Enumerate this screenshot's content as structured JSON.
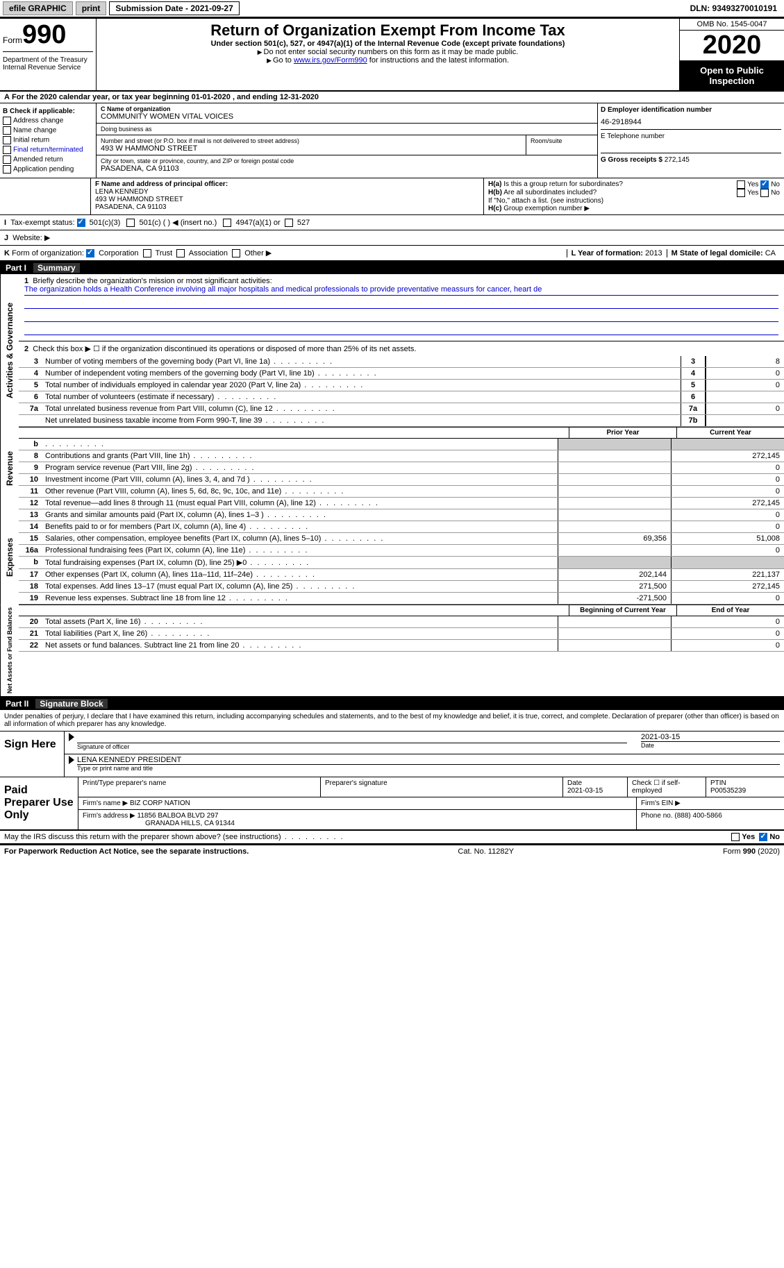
{
  "topbar": {
    "efile": "efile GRAPHIC",
    "print": "print",
    "submission": "Submission Date - 2021-09-27",
    "dln": "DLN: 93493270010191"
  },
  "header": {
    "form_label": "Form",
    "form_num": "990",
    "dept": "Department of the Treasury\nInternal Revenue Service",
    "title": "Return of Organization Exempt From Income Tax",
    "subtitle": "Under section 501(c), 527, or 4947(a)(1) of the Internal Revenue Code (except private foundations)",
    "note1": "Do not enter social security numbers on this form as it may be made public.",
    "note2_pre": "Go to ",
    "note2_link": "www.irs.gov/Form990",
    "note2_post": " for instructions and the latest information.",
    "omb": "OMB No. 1545-0047",
    "year": "2020",
    "open": "Open to Public Inspection"
  },
  "lineA": "For the 2020 calendar year, or tax year beginning 01-01-2020   , and ending 12-31-2020",
  "sectionB": {
    "label": "B Check if applicable:",
    "items": [
      "Address change",
      "Name change",
      "Initial return",
      "Final return/terminated",
      "Amended return",
      "Application pending"
    ]
  },
  "sectionC": {
    "name_label": "C Name of organization",
    "name": "COMMUNITY WOMEN VITAL VOICES",
    "dba_label": "Doing business as",
    "addr_label": "Number and street (or P.O. box if mail is not delivered to street address)",
    "room_label": "Room/suite",
    "addr": "493 W HAMMOND STREET",
    "city_label": "City or town, state or province, country, and ZIP or foreign postal code",
    "city": "PASADENA, CA  91103"
  },
  "sectionD": {
    "label": "D Employer identification number",
    "ein": "46-2918944"
  },
  "sectionE": {
    "label": "E Telephone number",
    "val": ""
  },
  "sectionG": {
    "label": "G Gross receipts $",
    "val": "272,145"
  },
  "sectionF": {
    "label": "F Name and address of principal officer:",
    "name": "LENA KENNEDY",
    "addr": "493 W HAMMOND STREET",
    "city": "PASADENA, CA  91103"
  },
  "sectionH": {
    "a": "Is this a group return for subordinates?",
    "a_yes": "Yes",
    "a_no": "No",
    "b": "Are all subordinates included?",
    "b_yes": "Yes",
    "b_no": "No",
    "note": "If \"No,\" attach a list. (see instructions)",
    "c": "Group exemption number ▶"
  },
  "rowI": {
    "label": "Tax-exempt status:",
    "opts": [
      "501(c)(3)",
      "501(c) (  ) ◀ (insert no.)",
      "4947(a)(1) or",
      "527"
    ]
  },
  "rowJ": {
    "label": "Website: ▶"
  },
  "rowK": {
    "label": "Form of organization:",
    "opts": [
      "Corporation",
      "Trust",
      "Association",
      "Other ▶"
    ]
  },
  "rowL": {
    "label": "L Year of formation:",
    "val": "2013"
  },
  "rowM": {
    "label": "M State of legal domicile:",
    "val": "CA"
  },
  "part1": {
    "num": "Part I",
    "title": "Summary",
    "line1_label": "Briefly describe the organization's mission or most significant activities:",
    "line1_text": "The organization holds a Health Conference involving all major hospitals and medical professionals to provide preventative meassurs for cancer, heart de",
    "line2": "Check this box ▶ ☐  if the organization discontinued its operations or disposed of more than 25% of its net assets.",
    "rows_gov": [
      {
        "n": "3",
        "desc": "Number of voting members of the governing body (Part VI, line 1a)",
        "box": "3",
        "val": "8"
      },
      {
        "n": "4",
        "desc": "Number of independent voting members of the governing body (Part VI, line 1b)",
        "box": "4",
        "val": "0"
      },
      {
        "n": "5",
        "desc": "Total number of individuals employed in calendar year 2020 (Part V, line 2a)",
        "box": "5",
        "val": "0"
      },
      {
        "n": "6",
        "desc": "Total number of volunteers (estimate if necessary)",
        "box": "6",
        "val": ""
      },
      {
        "n": "7a",
        "desc": "Total unrelated business revenue from Part VIII, column (C), line 12",
        "box": "7a",
        "val": "0"
      },
      {
        "n": "",
        "desc": "Net unrelated business taxable income from Form 990-T, line 39",
        "box": "7b",
        "val": ""
      }
    ],
    "th_prior": "Prior Year",
    "th_current": "Current Year",
    "rows_rev": [
      {
        "n": "b",
        "desc": "",
        "v1": "",
        "v2": "",
        "shaded": true
      },
      {
        "n": "8",
        "desc": "Contributions and grants (Part VIII, line 1h)",
        "v1": "",
        "v2": "272,145"
      },
      {
        "n": "9",
        "desc": "Program service revenue (Part VIII, line 2g)",
        "v1": "",
        "v2": "0"
      },
      {
        "n": "10",
        "desc": "Investment income (Part VIII, column (A), lines 3, 4, and 7d )",
        "v1": "",
        "v2": "0"
      },
      {
        "n": "11",
        "desc": "Other revenue (Part VIII, column (A), lines 5, 6d, 8c, 9c, 10c, and 11e)",
        "v1": "",
        "v2": "0"
      },
      {
        "n": "12",
        "desc": "Total revenue—add lines 8 through 11 (must equal Part VIII, column (A), line 12)",
        "v1": "",
        "v2": "272,145"
      }
    ],
    "rows_exp": [
      {
        "n": "13",
        "desc": "Grants and similar amounts paid (Part IX, column (A), lines 1–3 )",
        "v1": "",
        "v2": "0"
      },
      {
        "n": "14",
        "desc": "Benefits paid to or for members (Part IX, column (A), line 4)",
        "v1": "",
        "v2": "0"
      },
      {
        "n": "15",
        "desc": "Salaries, other compensation, employee benefits (Part IX, column (A), lines 5–10)",
        "v1": "69,356",
        "v2": "51,008"
      },
      {
        "n": "16a",
        "desc": "Professional fundraising fees (Part IX, column (A), line 11e)",
        "v1": "",
        "v2": "0"
      },
      {
        "n": "b",
        "desc": "Total fundraising expenses (Part IX, column (D), line 25) ▶0",
        "v1": "",
        "v2": "",
        "shaded": true
      },
      {
        "n": "17",
        "desc": "Other expenses (Part IX, column (A), lines 11a–11d, 11f–24e)",
        "v1": "202,144",
        "v2": "221,137"
      },
      {
        "n": "18",
        "desc": "Total expenses. Add lines 13–17 (must equal Part IX, column (A), line 25)",
        "v1": "271,500",
        "v2": "272,145"
      },
      {
        "n": "19",
        "desc": "Revenue less expenses. Subtract line 18 from line 12",
        "v1": "-271,500",
        "v2": "0"
      }
    ],
    "th_begin": "Beginning of Current Year",
    "th_end": "End of Year",
    "rows_net": [
      {
        "n": "20",
        "desc": "Total assets (Part X, line 16)",
        "v1": "",
        "v2": "0"
      },
      {
        "n": "21",
        "desc": "Total liabilities (Part X, line 26)",
        "v1": "",
        "v2": "0"
      },
      {
        "n": "22",
        "desc": "Net assets or fund balances. Subtract line 21 from line 20",
        "v1": "",
        "v2": "0"
      }
    ],
    "vtab_gov": "Activities & Governance",
    "vtab_rev": "Revenue",
    "vtab_exp": "Expenses",
    "vtab_net": "Net Assets or Fund Balances"
  },
  "part2": {
    "num": "Part II",
    "title": "Signature Block",
    "declaration": "Under penalties of perjury, I declare that I have examined this return, including accompanying schedules and statements, and to the best of my knowledge and belief, it is true, correct, and complete. Declaration of preparer (other than officer) is based on all information of which preparer has any knowledge.",
    "sign_here": "Sign Here",
    "sig_officer": "Signature of officer",
    "sig_date": "Date",
    "sig_date_val": "2021-03-15",
    "officer_name": "LENA KENNEDY PRESIDENT",
    "type_name": "Type or print name and title",
    "paid": "Paid Preparer Use Only",
    "prep_name_label": "Print/Type preparer's name",
    "prep_name": "",
    "prep_sig_label": "Preparer's signature",
    "prep_date_label": "Date",
    "prep_date": "2021-03-15",
    "prep_check_label": "Check ☐ if self-employed",
    "ptin_label": "PTIN",
    "ptin": "P00535239",
    "firm_name_label": "Firm's name    ▶",
    "firm_name": "BIZ CORP NATION",
    "firm_ein_label": "Firm's EIN ▶",
    "firm_addr_label": "Firm's address ▶",
    "firm_addr1": "11856 BALBOA BLVD 297",
    "firm_addr2": "GRANADA HILLS, CA  91344",
    "phone_label": "Phone no.",
    "phone": "(888) 400-5866",
    "discuss": "May the IRS discuss this return with the preparer shown above? (see instructions)",
    "yes": "Yes",
    "no": "No"
  },
  "footer": {
    "left": "For Paperwork Reduction Act Notice, see the separate instructions.",
    "mid": "Cat. No. 11282Y",
    "right": "Form 990 (2020)"
  }
}
